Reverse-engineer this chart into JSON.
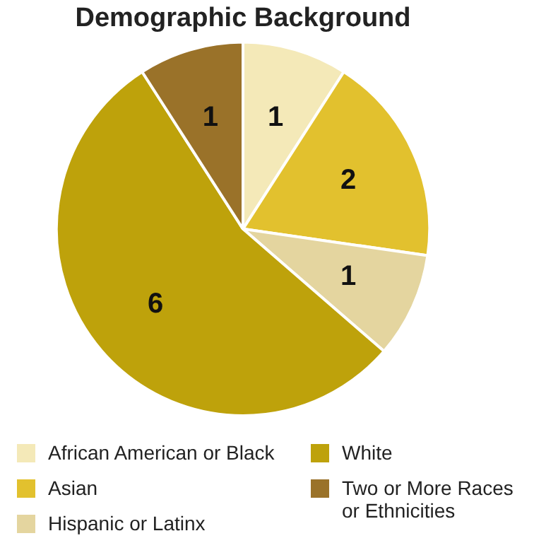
{
  "chart_data": {
    "type": "pie",
    "title": "Demographic Background",
    "categories": [
      "African American or Black",
      "Asian",
      "Hispanic or Latinx",
      "White",
      "Two or More Races or Ethnicities"
    ],
    "values": [
      1,
      2,
      1,
      6,
      1
    ],
    "colors": [
      "#f4e9b8",
      "#e2c12e",
      "#e4d59f",
      "#bea20b",
      "#9a7229"
    ],
    "data_labels": true,
    "legend": "bottom"
  }
}
